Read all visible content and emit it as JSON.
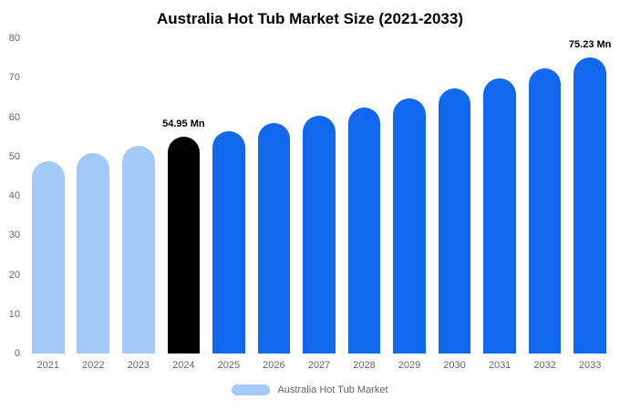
{
  "page": {
    "background": "#ffffff"
  },
  "colors": {
    "light_blue": "#a2c9f7",
    "highlight_black": "#000000",
    "primary_blue": "#1267ef",
    "axis_text": "#666666",
    "title_text": "#000000"
  },
  "chart_data": {
    "type": "bar",
    "title": "Australia Hot Tub Market Size (2021-2033)",
    "xlabel": "",
    "ylabel": "",
    "grid": false,
    "ylim": [
      0,
      80
    ],
    "yticks": [
      0,
      10,
      20,
      30,
      40,
      50,
      60,
      70,
      80
    ],
    "categories": [
      "2021",
      "2022",
      "2023",
      "2024",
      "2025",
      "2026",
      "2027",
      "2028",
      "2029",
      "2030",
      "2031",
      "2032",
      "2033"
    ],
    "values": [
      48.9,
      50.8,
      52.7,
      54.95,
      56.4,
      58.4,
      60.4,
      62.5,
      64.8,
      67.2,
      69.8,
      72.4,
      75.23
    ],
    "bar_colors": [
      "#a2c9f7",
      "#a2c9f7",
      "#a2c9f7",
      "#000000",
      "#1267ef",
      "#1267ef",
      "#1267ef",
      "#1267ef",
      "#1267ef",
      "#1267ef",
      "#1267ef",
      "#1267ef",
      "#1267ef"
    ],
    "annotations": [
      {
        "category": "2024",
        "text": "54.95 Mn"
      },
      {
        "category": "2033",
        "text": "75.23 Mn"
      }
    ],
    "legend": {
      "position": "bottom",
      "label": "Australia Hot Tub Market",
      "swatch_color": "#a2c9f7"
    }
  }
}
